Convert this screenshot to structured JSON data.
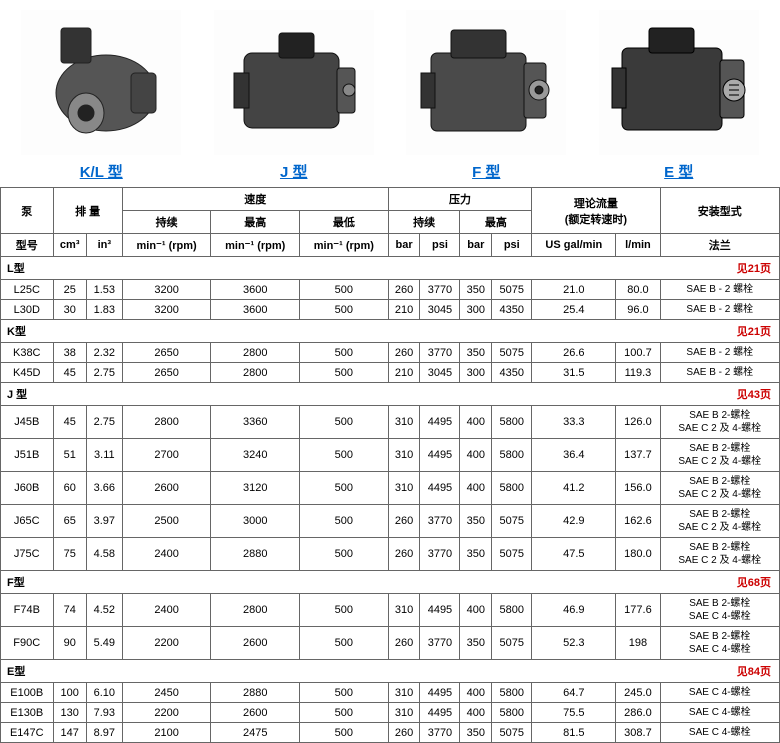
{
  "products": [
    {
      "label": "K/L 型"
    },
    {
      "label": "J 型"
    },
    {
      "label": "F 型"
    },
    {
      "label": "E 型"
    }
  ],
  "table": {
    "head": {
      "pump": "泵",
      "disp": "排    量",
      "speed": "速度",
      "pressure": "压力",
      "flow": "理论流量\n(额定转速时)",
      "mount": "安装型式",
      "model": "型号",
      "cm3": "cm³",
      "in3": "in³",
      "cont": "持续",
      "max": "最高",
      "min": "最低",
      "rpm": "min⁻¹ (rpm)",
      "bar": "bar",
      "psi": "psi",
      "gal": "US gal/min",
      "lmin": "l/min",
      "flange": "法兰"
    },
    "sections": [
      {
        "name": "L型",
        "page": "见21页",
        "rows": [
          {
            "model": "L25C",
            "cm3": "25",
            "in3": "1.53",
            "s_cont": "3200",
            "s_max": "3600",
            "s_min": "500",
            "p_cb": "260",
            "p_cp": "3770",
            "p_mb": "350",
            "p_mp": "5075",
            "gal": "21.0",
            "lmin": "80.0",
            "mount": "SAE B - 2 螺栓"
          },
          {
            "model": "L30D",
            "cm3": "30",
            "in3": "1.83",
            "s_cont": "3200",
            "s_max": "3600",
            "s_min": "500",
            "p_cb": "210",
            "p_cp": "3045",
            "p_mb": "300",
            "p_mp": "4350",
            "gal": "25.4",
            "lmin": "96.0",
            "mount": "SAE B - 2 螺栓"
          }
        ]
      },
      {
        "name": "K型",
        "page": "见21页",
        "rows": [
          {
            "model": "K38C",
            "cm3": "38",
            "in3": "2.32",
            "s_cont": "2650",
            "s_max": "2800",
            "s_min": "500",
            "p_cb": "260",
            "p_cp": "3770",
            "p_mb": "350",
            "p_mp": "5075",
            "gal": "26.6",
            "lmin": "100.7",
            "mount": "SAE B - 2 螺栓"
          },
          {
            "model": "K45D",
            "cm3": "45",
            "in3": "2.75",
            "s_cont": "2650",
            "s_max": "2800",
            "s_min": "500",
            "p_cb": "210",
            "p_cp": "3045",
            "p_mb": "300",
            "p_mp": "4350",
            "gal": "31.5",
            "lmin": "119.3",
            "mount": "SAE B - 2 螺栓"
          }
        ]
      },
      {
        "name": "J 型",
        "page": "见43页",
        "rows": [
          {
            "model": "J45B",
            "cm3": "45",
            "in3": "2.75",
            "s_cont": "2800",
            "s_max": "3360",
            "s_min": "500",
            "p_cb": "310",
            "p_cp": "4495",
            "p_mb": "400",
            "p_mp": "5800",
            "gal": "33.3",
            "lmin": "126.0",
            "mount": "SAE B 2-螺栓\nSAE C 2 及 4-螺栓"
          },
          {
            "model": "J51B",
            "cm3": "51",
            "in3": "3.11",
            "s_cont": "2700",
            "s_max": "3240",
            "s_min": "500",
            "p_cb": "310",
            "p_cp": "4495",
            "p_mb": "400",
            "p_mp": "5800",
            "gal": "36.4",
            "lmin": "137.7",
            "mount": "SAE B 2-螺栓\nSAE C 2 及 4-螺栓"
          },
          {
            "model": "J60B",
            "cm3": "60",
            "in3": "3.66",
            "s_cont": "2600",
            "s_max": "3120",
            "s_min": "500",
            "p_cb": "310",
            "p_cp": "4495",
            "p_mb": "400",
            "p_mp": "5800",
            "gal": "41.2",
            "lmin": "156.0",
            "mount": "SAE B 2-螺栓\nSAE C 2 及 4-螺栓"
          },
          {
            "model": "J65C",
            "cm3": "65",
            "in3": "3.97",
            "s_cont": "2500",
            "s_max": "3000",
            "s_min": "500",
            "p_cb": "260",
            "p_cp": "3770",
            "p_mb": "350",
            "p_mp": "5075",
            "gal": "42.9",
            "lmin": "162.6",
            "mount": "SAE B 2-螺栓\nSAE C 2 及 4-螺栓"
          },
          {
            "model": "J75C",
            "cm3": "75",
            "in3": "4.58",
            "s_cont": "2400",
            "s_max": "2880",
            "s_min": "500",
            "p_cb": "260",
            "p_cp": "3770",
            "p_mb": "350",
            "p_mp": "5075",
            "gal": "47.5",
            "lmin": "180.0",
            "mount": "SAE B 2-螺栓\nSAE C 2 及 4-螺栓"
          }
        ]
      },
      {
        "name": "F型",
        "page": "见68页",
        "rows": [
          {
            "model": "F74B",
            "cm3": "74",
            "in3": "4.52",
            "s_cont": "2400",
            "s_max": "2800",
            "s_min": "500",
            "p_cb": "310",
            "p_cp": "4495",
            "p_mb": "400",
            "p_mp": "5800",
            "gal": "46.9",
            "lmin": "177.6",
            "mount": "SAE B 2-螺栓\nSAE C 4-螺栓"
          },
          {
            "model": "F90C",
            "cm3": "90",
            "in3": "5.49",
            "s_cont": "2200",
            "s_max": "2600",
            "s_min": "500",
            "p_cb": "260",
            "p_cp": "3770",
            "p_mb": "350",
            "p_mp": "5075",
            "gal": "52.3",
            "lmin": "198",
            "mount": "SAE B 2-螺栓\nSAE C 4-螺栓"
          }
        ]
      },
      {
        "name": "E型",
        "page": "见84页",
        "rows": [
          {
            "model": "E100B",
            "cm3": "100",
            "in3": "6.10",
            "s_cont": "2450",
            "s_max": "2880",
            "s_min": "500",
            "p_cb": "310",
            "p_cp": "4495",
            "p_mb": "400",
            "p_mp": "5800",
            "gal": "64.7",
            "lmin": "245.0",
            "mount": "SAE C 4-螺栓"
          },
          {
            "model": "E130B",
            "cm3": "130",
            "in3": "7.93",
            "s_cont": "2200",
            "s_max": "2600",
            "s_min": "500",
            "p_cb": "310",
            "p_cp": "4495",
            "p_mb": "400",
            "p_mp": "5800",
            "gal": "75.5",
            "lmin": "286.0",
            "mount": "SAE C 4-螺栓"
          },
          {
            "model": "E147C",
            "cm3": "147",
            "in3": "8.97",
            "s_cont": "2100",
            "s_max": "2475",
            "s_min": "500",
            "p_cb": "260",
            "p_cp": "3770",
            "p_mb": "350",
            "p_mp": "5075",
            "gal": "81.5",
            "lmin": "308.7",
            "mount": "SAE C 4-螺栓"
          }
        ]
      }
    ]
  },
  "style": {
    "label_color": "#0066cc",
    "page_ref_color": "#cc0000",
    "border_color": "#666666",
    "body_font_size": 11
  }
}
